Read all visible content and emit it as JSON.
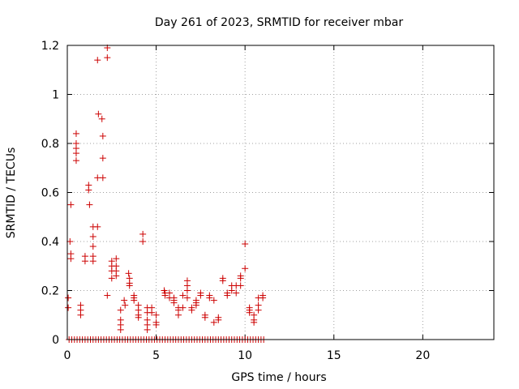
{
  "chart_data": {
    "type": "scatter",
    "title": "Day 261 of 2023, SRMTID for receiver mbar",
    "xlabel": "GPS time / hours",
    "ylabel": "SRMTID / TECUs",
    "xlim": [
      0,
      24
    ],
    "ylim": [
      0,
      1.2
    ],
    "xticks": [
      0,
      5,
      10,
      15,
      20
    ],
    "yticks": [
      0,
      0.2,
      0.4,
      0.6,
      0.8,
      1,
      1.2
    ],
    "xtick_labels": [
      "0",
      "5",
      "10",
      "15",
      "20"
    ],
    "ytick_labels": [
      "0",
      "0.2",
      "0.4",
      "0.6",
      "0.8",
      "1",
      "1.2"
    ],
    "grid": true,
    "marker": "plus",
    "color": "#cc0000",
    "series": [
      {
        "name": "SRMTID",
        "points": [
          [
            0.05,
            0.17
          ],
          [
            0.05,
            0.13
          ],
          [
            0.15,
            0.4
          ],
          [
            0.2,
            0.55
          ],
          [
            0.2,
            0.35
          ],
          [
            0.2,
            0.33
          ],
          [
            0.5,
            0.84
          ],
          [
            0.5,
            0.8
          ],
          [
            0.5,
            0.78
          ],
          [
            0.5,
            0.76
          ],
          [
            0.5,
            0.73
          ],
          [
            0.75,
            0.14
          ],
          [
            0.75,
            0.12
          ],
          [
            0.75,
            0.1
          ],
          [
            1.0,
            0.34
          ],
          [
            1.0,
            0.32
          ],
          [
            1.2,
            0.63
          ],
          [
            1.2,
            0.61
          ],
          [
            1.25,
            0.55
          ],
          [
            1.45,
            0.46
          ],
          [
            1.45,
            0.42
          ],
          [
            1.45,
            0.38
          ],
          [
            1.45,
            0.34
          ],
          [
            1.45,
            0.32
          ],
          [
            1.7,
            1.14
          ],
          [
            1.75,
            0.92
          ],
          [
            1.7,
            0.66
          ],
          [
            1.7,
            0.46
          ],
          [
            1.95,
            0.9
          ],
          [
            2.0,
            0.83
          ],
          [
            2.0,
            0.74
          ],
          [
            2.0,
            0.66
          ],
          [
            2.25,
            1.19
          ],
          [
            2.25,
            1.15
          ],
          [
            2.25,
            0.18
          ],
          [
            2.5,
            0.32
          ],
          [
            2.5,
            0.3
          ],
          [
            2.5,
            0.28
          ],
          [
            2.5,
            0.25
          ],
          [
            2.75,
            0.33
          ],
          [
            2.75,
            0.3
          ],
          [
            2.75,
            0.28
          ],
          [
            2.75,
            0.26
          ],
          [
            3.0,
            0.12
          ],
          [
            3.0,
            0.08
          ],
          [
            3.0,
            0.06
          ],
          [
            3.0,
            0.04
          ],
          [
            3.2,
            0.16
          ],
          [
            3.25,
            0.14
          ],
          [
            3.45,
            0.27
          ],
          [
            3.5,
            0.25
          ],
          [
            3.5,
            0.23
          ],
          [
            3.5,
            0.22
          ],
          [
            3.75,
            0.18
          ],
          [
            3.75,
            0.17
          ],
          [
            3.75,
            0.16
          ],
          [
            4.0,
            0.14
          ],
          [
            4.0,
            0.12
          ],
          [
            4.0,
            0.1
          ],
          [
            4.0,
            0.09
          ],
          [
            4.25,
            0.43
          ],
          [
            4.25,
            0.4
          ],
          [
            4.5,
            0.13
          ],
          [
            4.5,
            0.11
          ],
          [
            4.5,
            0.08
          ],
          [
            4.5,
            0.06
          ],
          [
            4.5,
            0.04
          ],
          [
            4.75,
            0.13
          ],
          [
            4.75,
            0.11
          ],
          [
            5.0,
            0.1
          ],
          [
            5.0,
            0.07
          ],
          [
            5.0,
            0.06
          ],
          [
            5.45,
            0.2
          ],
          [
            5.5,
            0.19
          ],
          [
            5.5,
            0.18
          ],
          [
            5.75,
            0.19
          ],
          [
            5.75,
            0.17
          ],
          [
            6.0,
            0.17
          ],
          [
            6.0,
            0.16
          ],
          [
            6.0,
            0.15
          ],
          [
            6.25,
            0.13
          ],
          [
            6.25,
            0.12
          ],
          [
            6.25,
            0.1
          ],
          [
            6.5,
            0.13
          ],
          [
            6.5,
            0.18
          ],
          [
            6.75,
            0.24
          ],
          [
            6.75,
            0.22
          ],
          [
            6.75,
            0.2
          ],
          [
            6.75,
            0.17
          ],
          [
            7.0,
            0.13
          ],
          [
            7.0,
            0.12
          ],
          [
            7.25,
            0.16
          ],
          [
            7.25,
            0.15
          ],
          [
            7.25,
            0.14
          ],
          [
            7.5,
            0.19
          ],
          [
            7.5,
            0.18
          ],
          [
            7.75,
            0.1
          ],
          [
            7.75,
            0.09
          ],
          [
            8.0,
            0.18
          ],
          [
            8.0,
            0.17
          ],
          [
            8.25,
            0.16
          ],
          [
            8.25,
            0.07
          ],
          [
            8.5,
            0.09
          ],
          [
            8.5,
            0.08
          ],
          [
            8.75,
            0.25
          ],
          [
            8.75,
            0.24
          ],
          [
            9.0,
            0.19
          ],
          [
            9.0,
            0.18
          ],
          [
            9.25,
            0.22
          ],
          [
            9.25,
            0.2
          ],
          [
            9.5,
            0.22
          ],
          [
            9.5,
            0.19
          ],
          [
            9.75,
            0.26
          ],
          [
            9.75,
            0.25
          ],
          [
            9.75,
            0.22
          ],
          [
            10.0,
            0.39
          ],
          [
            10.0,
            0.29
          ],
          [
            10.25,
            0.13
          ],
          [
            10.25,
            0.12
          ],
          [
            10.25,
            0.11
          ],
          [
            10.5,
            0.1
          ],
          [
            10.5,
            0.08
          ],
          [
            10.5,
            0.07
          ],
          [
            10.75,
            0.17
          ],
          [
            10.75,
            0.14
          ],
          [
            10.75,
            0.12
          ],
          [
            11.0,
            0.18
          ],
          [
            11.0,
            0.17
          ],
          [
            0.1,
            0
          ],
          [
            0.25,
            0
          ],
          [
            0.4,
            0
          ],
          [
            0.55,
            0
          ],
          [
            0.7,
            0
          ],
          [
            0.85,
            0
          ],
          [
            1.0,
            0
          ],
          [
            1.15,
            0
          ],
          [
            1.3,
            0
          ],
          [
            1.45,
            0
          ],
          [
            1.6,
            0
          ],
          [
            1.75,
            0
          ],
          [
            1.9,
            0
          ],
          [
            2.05,
            0
          ],
          [
            2.2,
            0
          ],
          [
            2.35,
            0
          ],
          [
            2.5,
            0
          ],
          [
            2.65,
            0
          ],
          [
            2.8,
            0
          ],
          [
            2.95,
            0
          ],
          [
            3.1,
            0
          ],
          [
            3.25,
            0
          ],
          [
            3.4,
            0
          ],
          [
            3.55,
            0
          ],
          [
            3.7,
            0
          ],
          [
            3.85,
            0
          ],
          [
            4.0,
            0
          ],
          [
            4.15,
            0
          ],
          [
            4.3,
            0
          ],
          [
            4.45,
            0
          ],
          [
            4.6,
            0
          ],
          [
            4.75,
            0
          ],
          [
            4.9,
            0
          ],
          [
            5.05,
            0
          ],
          [
            5.2,
            0
          ],
          [
            5.35,
            0
          ],
          [
            5.5,
            0
          ],
          [
            5.65,
            0
          ],
          [
            5.8,
            0
          ],
          [
            5.95,
            0
          ],
          [
            6.1,
            0
          ],
          [
            6.25,
            0
          ],
          [
            6.4,
            0
          ],
          [
            6.55,
            0
          ],
          [
            6.7,
            0
          ],
          [
            6.85,
            0
          ],
          [
            7.0,
            0
          ],
          [
            7.15,
            0
          ],
          [
            7.3,
            0
          ],
          [
            7.45,
            0
          ],
          [
            7.6,
            0
          ],
          [
            7.75,
            0
          ],
          [
            7.9,
            0
          ],
          [
            8.05,
            0
          ],
          [
            8.2,
            0
          ],
          [
            8.35,
            0
          ],
          [
            8.5,
            0
          ],
          [
            8.65,
            0
          ],
          [
            8.8,
            0
          ],
          [
            8.95,
            0
          ],
          [
            9.1,
            0
          ],
          [
            9.25,
            0
          ],
          [
            9.4,
            0
          ],
          [
            9.55,
            0
          ],
          [
            9.7,
            0
          ],
          [
            9.85,
            0
          ],
          [
            10.0,
            0
          ],
          [
            10.15,
            0
          ],
          [
            10.3,
            0
          ],
          [
            10.45,
            0
          ],
          [
            10.6,
            0
          ],
          [
            10.75,
            0
          ],
          [
            10.9,
            0
          ],
          [
            11.05,
            0
          ]
        ]
      }
    ]
  }
}
